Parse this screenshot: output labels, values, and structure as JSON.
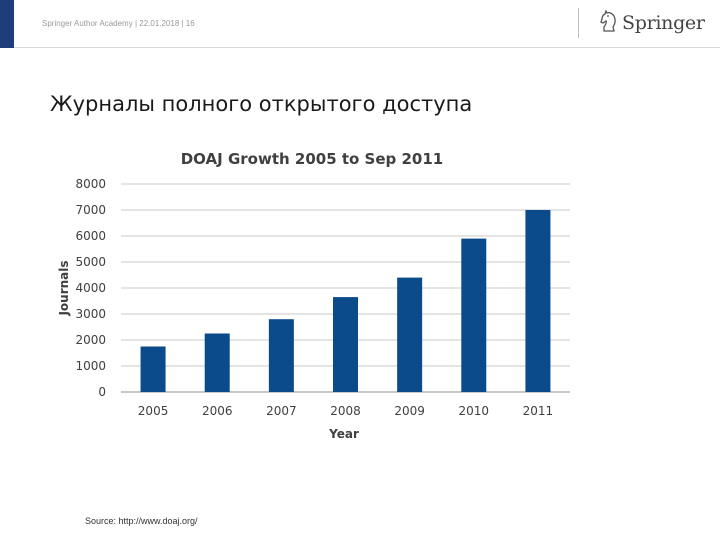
{
  "header": {
    "text": "Springer Author Academy | 22.01.2018 | 16"
  },
  "logo": {
    "text": "Springer",
    "icon": "chess-knight-icon"
  },
  "slide": {
    "title": "Журналы полного открытого доступа",
    "source": "Source: http://www.doaj.org/"
  },
  "colors": {
    "bar": "#0b4a8b",
    "brand_bar": "#1f3d7a"
  },
  "chart_data": {
    "type": "bar",
    "title": "DOAJ Growth 2005 to Sep 2011",
    "xlabel": "Year",
    "ylabel": "Journals",
    "categories": [
      "2005",
      "2006",
      "2007",
      "2008",
      "2009",
      "2010",
      "2011"
    ],
    "values": [
      1750,
      2250,
      2800,
      3650,
      4400,
      5900,
      7000
    ],
    "ylim": [
      0,
      8000
    ],
    "yticks": [
      "0",
      "1000",
      "2000",
      "3000",
      "4000",
      "5000",
      "6000",
      "7000",
      "8000"
    ],
    "grid": true,
    "legend": "none"
  }
}
